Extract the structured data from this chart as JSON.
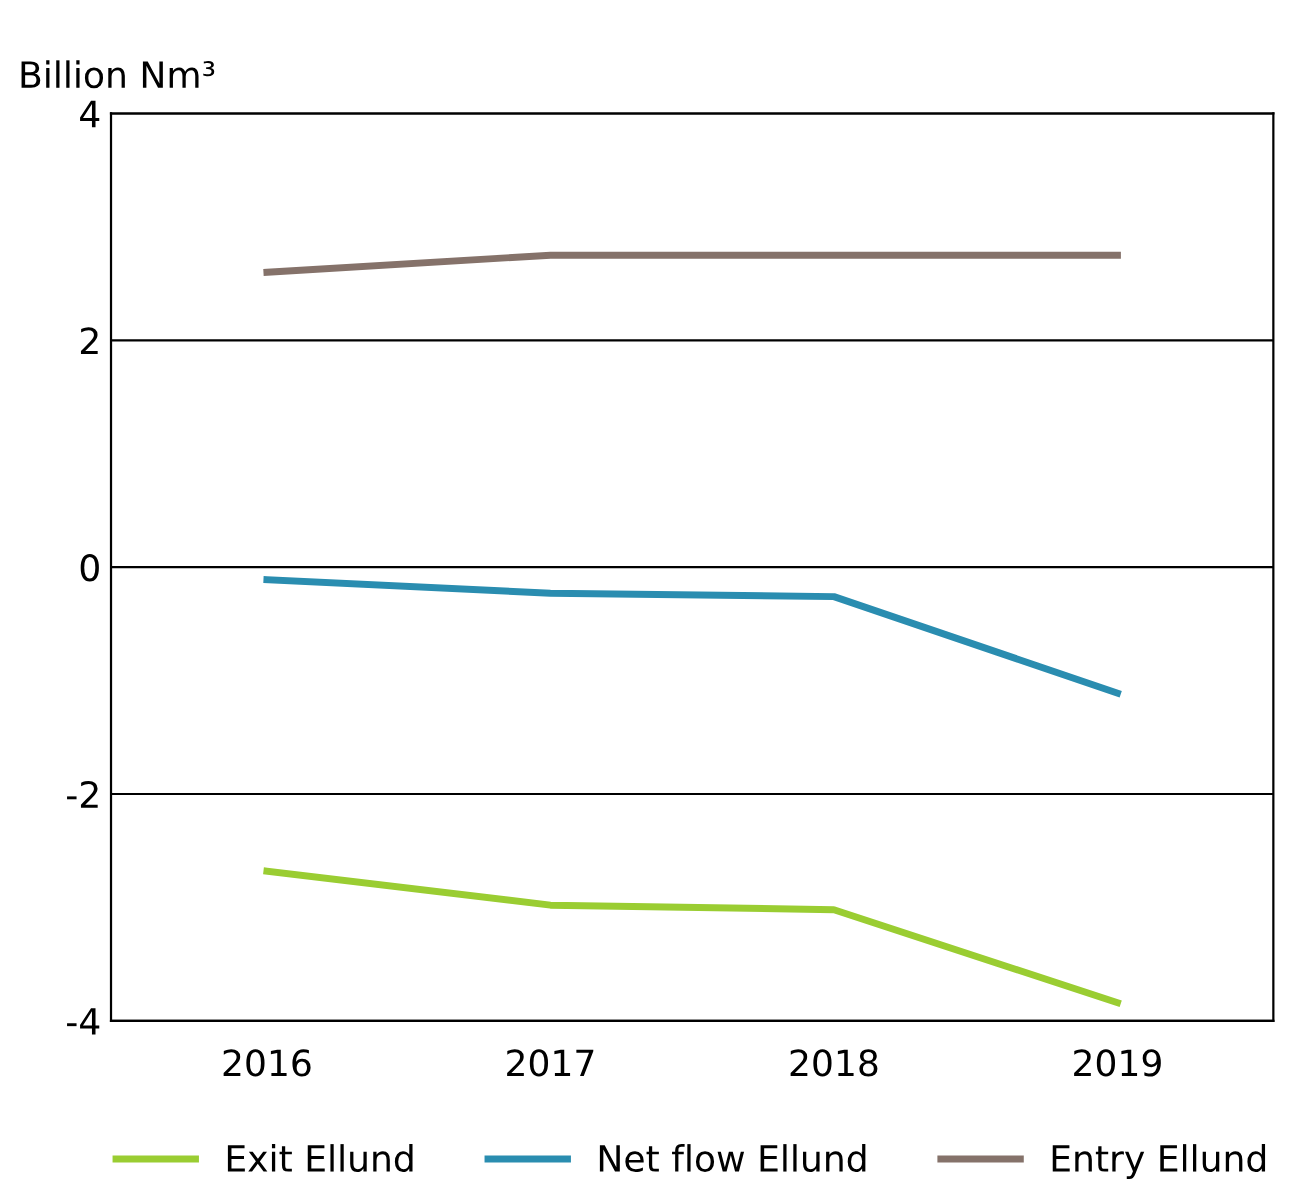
{
  "chart_data": {
    "type": "line",
    "ylabel": "Billion Nm³",
    "categories": [
      "2016",
      "2017",
      "2018",
      "2019"
    ],
    "series": [
      {
        "name": "Exit Ellund",
        "color": "#9acd32",
        "values": [
          -2.68,
          -2.98,
          -3.02,
          -3.84
        ]
      },
      {
        "name": "Net flow Ellund",
        "color": "#2a8db0",
        "values": [
          -0.11,
          -0.23,
          -0.26,
          -1.11
        ]
      },
      {
        "name": "Entry Ellund",
        "color": "#85726a",
        "values": [
          2.6,
          2.75,
          2.75,
          2.75
        ]
      }
    ],
    "ylim": [
      -4,
      4
    ],
    "yticks": [
      -4,
      -2,
      0,
      2,
      4
    ],
    "grid": "y",
    "legend": "bottom",
    "marker": "none",
    "line_style": "solid"
  }
}
